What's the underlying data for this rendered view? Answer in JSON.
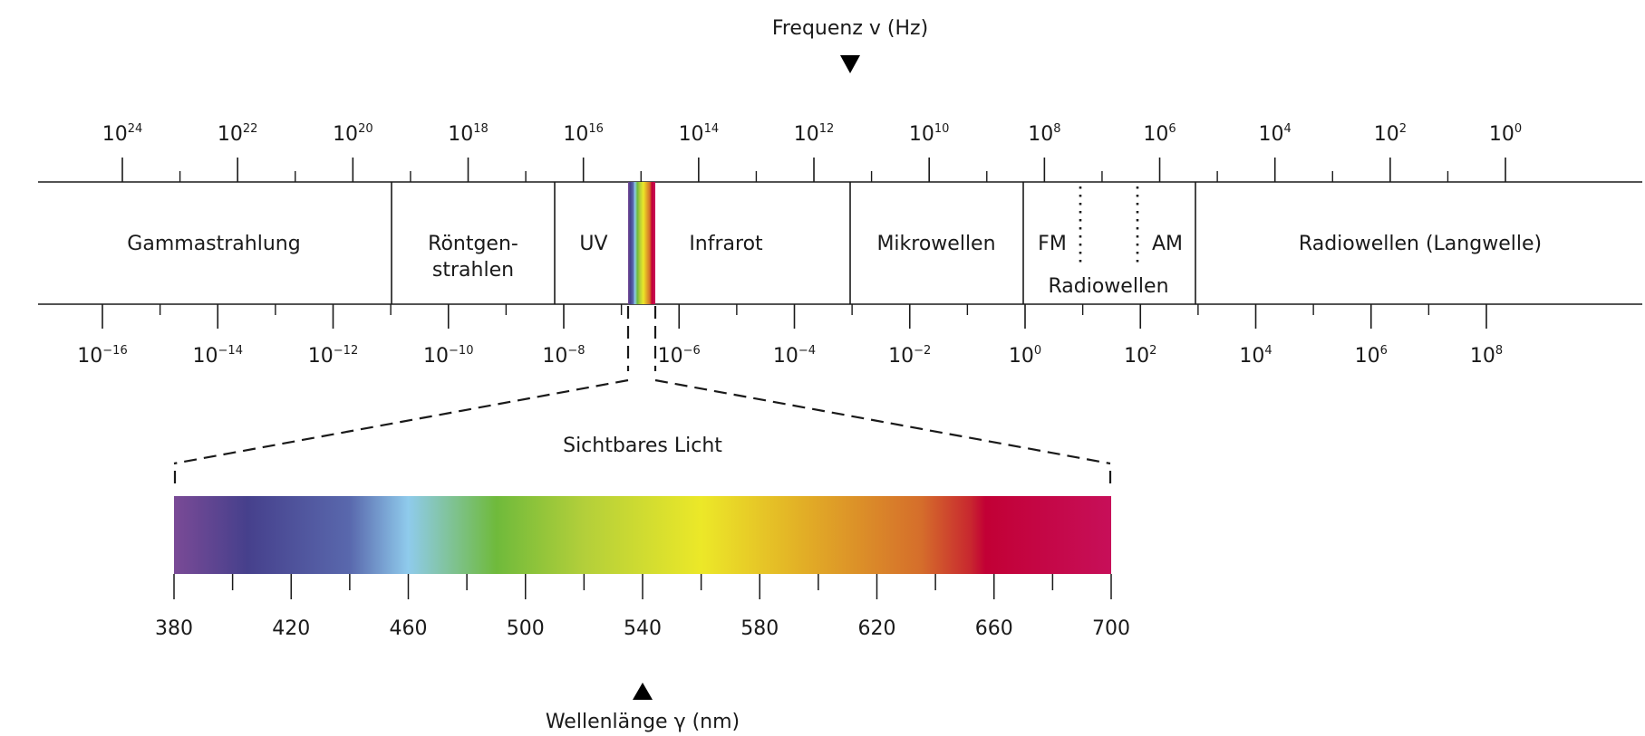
{
  "frequency_axis": {
    "title": "Frequenz v (Hz)",
    "base": "10",
    "exponents": [
      "24",
      "22",
      "20",
      "18",
      "16",
      "14",
      "12",
      "10",
      "8",
      "6",
      "4",
      "2",
      "0"
    ]
  },
  "wavelength_axis": {
    "base": "10",
    "exponents": [
      "−16",
      "−14",
      "−12",
      "−10",
      "−8",
      "−6",
      "−4",
      "−2",
      "0",
      "2",
      "4",
      "6",
      "8"
    ]
  },
  "bands": [
    {
      "key": "gamma",
      "lines": [
        "Gammastrahlung"
      ]
    },
    {
      "key": "xray",
      "lines": [
        "Röntgen-",
        "strahlen"
      ]
    },
    {
      "key": "uv",
      "lines": [
        "UV"
      ]
    },
    {
      "key": "infrared",
      "lines": [
        "Infrarot"
      ]
    },
    {
      "key": "microwave",
      "lines": [
        "Mikrowellen"
      ]
    },
    {
      "key": "fm",
      "lines": [
        "FM"
      ]
    },
    {
      "key": "am",
      "lines": [
        "AM"
      ]
    },
    {
      "key": "radio",
      "lines": [
        "Radiowellen"
      ]
    },
    {
      "key": "longwave",
      "lines": [
        "Radiowellen (Langwelle)"
      ]
    }
  ],
  "visible": {
    "label": "Sichtbares Licht",
    "min_nm": 380,
    "max_nm": 700,
    "tick_labels": [
      "380",
      "420",
      "460",
      "500",
      "540",
      "580",
      "620",
      "660",
      "700"
    ],
    "axis_title": "Wellenlänge γ (nm)",
    "gradient": [
      {
        "nm": 380,
        "color": "#7a4a96"
      },
      {
        "nm": 405,
        "color": "#46408c"
      },
      {
        "nm": 440,
        "color": "#5968ad"
      },
      {
        "nm": 460,
        "color": "#8fcbec"
      },
      {
        "nm": 490,
        "color": "#6fba3b"
      },
      {
        "nm": 520,
        "color": "#b3cf3a"
      },
      {
        "nm": 560,
        "color": "#ece828"
      },
      {
        "nm": 595,
        "color": "#e2ae26"
      },
      {
        "nm": 635,
        "color": "#d56e2b"
      },
      {
        "nm": 652,
        "color": "#c8272f"
      },
      {
        "nm": 657,
        "color": "#c20035"
      },
      {
        "nm": 700,
        "color": "#c70f59"
      }
    ]
  },
  "colors": {
    "line": "#1a1a1a",
    "marker": "#000000"
  }
}
